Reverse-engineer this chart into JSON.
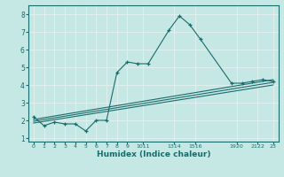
{
  "xlabel": "Humidex (Indice chaleur)",
  "ylabel": "",
  "background_color": "#c5e8e5",
  "line_color": "#1a6b6b",
  "grid_color": "#e0f0ee",
  "xlim": [
    -0.5,
    23.5
  ],
  "ylim": [
    0.8,
    8.5
  ],
  "yticks": [
    1,
    2,
    3,
    4,
    5,
    6,
    7,
    8
  ],
  "series1_x": [
    0,
    1,
    2,
    3,
    4,
    5,
    6,
    7,
    8,
    9,
    10,
    11,
    13,
    14,
    15,
    16,
    19,
    20,
    21,
    22,
    23
  ],
  "series1_y": [
    2.2,
    1.7,
    1.9,
    1.8,
    1.8,
    1.4,
    2.0,
    2.0,
    4.7,
    5.3,
    5.2,
    5.2,
    7.1,
    7.9,
    7.4,
    6.6,
    4.1,
    4.1,
    4.2,
    4.3,
    4.2
  ],
  "series2_x": [
    0,
    23
  ],
  "series2_y": [
    2.05,
    4.3
  ],
  "series3_x": [
    0,
    23
  ],
  "series3_y": [
    1.95,
    4.15
  ],
  "series4_x": [
    0,
    23
  ],
  "series4_y": [
    1.85,
    4.0
  ],
  "xtick_positions": [
    0,
    1,
    2,
    3,
    4,
    5,
    6,
    7,
    8,
    9,
    10.5,
    13.5,
    15.5,
    19.5,
    21.5,
    23
  ],
  "xtick_labels": [
    "0",
    "1",
    "2",
    "3",
    "4",
    "5",
    "6",
    "7",
    "8",
    "9",
    "1011",
    "1314",
    "1516",
    "1920",
    "2122",
    "23"
  ]
}
